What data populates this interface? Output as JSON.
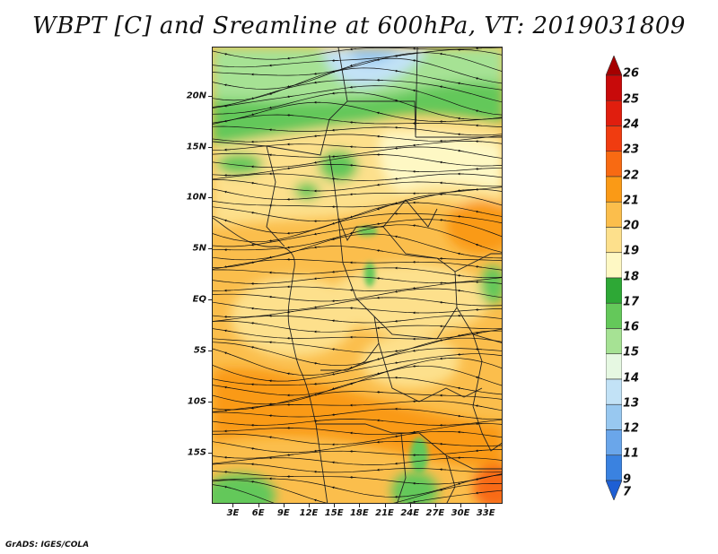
{
  "title": "WBPT [C] and Sreamline at 600hPa, VT: 2019031809",
  "map": {
    "lat_labels": [
      {
        "lat": 20,
        "label": "20N"
      },
      {
        "lat": 15,
        "label": "15N"
      },
      {
        "lat": 10,
        "label": "10N"
      },
      {
        "lat": 5,
        "label": "5N"
      },
      {
        "lat": 0,
        "label": "EQ"
      },
      {
        "lat": -5,
        "label": "5S"
      },
      {
        "lat": -10,
        "label": "10S"
      },
      {
        "lat": -15,
        "label": "15S"
      }
    ],
    "lon_labels": [
      {
        "lon": 3,
        "label": "3E"
      },
      {
        "lon": 6,
        "label": "6E"
      },
      {
        "lon": 9,
        "label": "9E"
      },
      {
        "lon": 12,
        "label": "12E"
      },
      {
        "lon": 15,
        "label": "15E"
      },
      {
        "lon": 18,
        "label": "18E"
      },
      {
        "lon": 21,
        "label": "21E"
      },
      {
        "lon": 24,
        "label": "24E"
      },
      {
        "lon": 27,
        "label": "27E"
      },
      {
        "lon": 30,
        "label": "30E"
      },
      {
        "lon": 33,
        "label": "33E"
      }
    ],
    "lon_range": [
      0.5,
      35
    ],
    "lat_range": [
      -20,
      24.8
    ],
    "flow": "streamlines, predominantly easterly (toward west)"
  },
  "colorbar": {
    "levels": [
      {
        "label": "26",
        "color": "#a50000"
      },
      {
        "label": "25",
        "color": "#c80a0a"
      },
      {
        "label": "24",
        "color": "#e01e0e"
      },
      {
        "label": "23",
        "color": "#f03c10"
      },
      {
        "label": "22",
        "color": "#f86a12"
      },
      {
        "label": "21",
        "color": "#fa9a16"
      },
      {
        "label": "20",
        "color": "#fbbe4c"
      },
      {
        "label": "19",
        "color": "#fde08c"
      },
      {
        "label": "18",
        "color": "#fef8c4"
      },
      {
        "label": "17",
        "color": "#2ea836"
      },
      {
        "label": "16",
        "color": "#64c85a"
      },
      {
        "label": "15",
        "color": "#a6e294"
      },
      {
        "label": "14",
        "color": "#e6f8e2"
      },
      {
        "label": "13",
        "color": "#c2e2f6"
      },
      {
        "label": "12",
        "color": "#98c8f0"
      },
      {
        "label": "11",
        "color": "#6aa6ea"
      },
      {
        "label": "9",
        "color": "#3a82e0"
      },
      {
        "label": "7",
        "color": "#1e5fd4"
      }
    ]
  },
  "credit": "GrADS: IGES/COLA"
}
